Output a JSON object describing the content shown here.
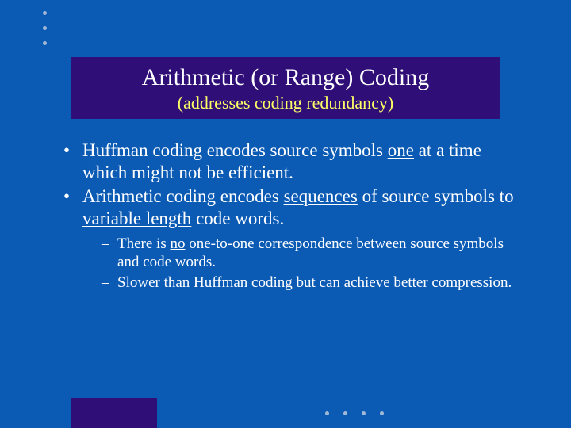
{
  "colors": {
    "slide_bg": "#0b5bb5",
    "title_bar_bg": "#2f0e78",
    "title_text": "#ffffff",
    "subtitle_text": "#ffff66",
    "body_text": "#ffffff",
    "dot_color": "#9fb8d6",
    "bottom_block_bg": "#2f0e78"
  },
  "typography": {
    "title_fontsize": 30,
    "subtitle_fontsize": 22,
    "bullet_fontsize": 23,
    "subbullet_fontsize": 19,
    "font_family": "Times New Roman"
  },
  "title": "Arithmetic (or Range) Coding",
  "subtitle": "(addresses coding redundancy)",
  "bullets": [
    {
      "pre1": "Huffman coding encodes source symbols ",
      "u1": "one",
      "post1": " at a time which might not be efficient."
    },
    {
      "pre1": "Arithmetic coding encodes ",
      "u1": "sequences",
      "mid": " of source symbols to ",
      "u2": "variable length",
      "post2": " code words."
    }
  ],
  "sub_bullets": [
    {
      "pre": "There is ",
      "u": "no",
      "post": " one-to-one correspondence between source symbols and code words."
    },
    {
      "text": "Slower than Huffman coding but can achieve better compression."
    }
  ],
  "decor": {
    "top_dot_count": 3,
    "bottom_dot_count": 4
  }
}
